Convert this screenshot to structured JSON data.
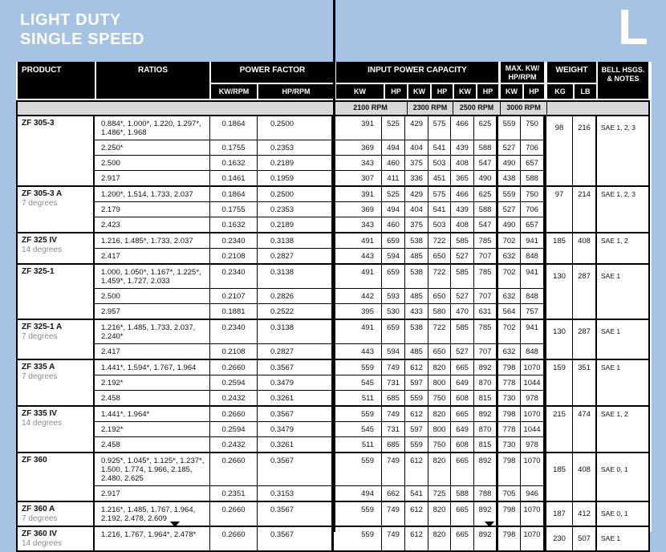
{
  "page": {
    "title_line1": "LIGHT DUTY",
    "title_line2": "SINGLE SPEED",
    "section_letter": "L",
    "colors": {
      "header_blue": "#a6c3e3",
      "band_gray": "#d8d8d8",
      "table_black": "#000000"
    }
  },
  "table": {
    "headers": {
      "product": "PRODUCT",
      "ratios": "RATIOS",
      "power_factor": "POWER FACTOR",
      "kw_rpm": "KW/RPM",
      "hp_rpm": "HP/RPM",
      "input_power": "INPUT POWER CAPACITY",
      "max_line1": "MAX. KW/",
      "max_line2": "HP/RPM",
      "weight": "WEIGHT",
      "bell_line1": "BELL HSGS.",
      "bell_line2": "& NOTES",
      "kw": "KW",
      "hp": "HP",
      "kg": "KG",
      "lb": "LB",
      "rpm_bands": [
        "2100 RPM",
        "2300 RPM",
        "2500 RPM",
        "3000 RPM"
      ]
    },
    "groups": [
      {
        "product": "ZF 305-3",
        "degrees": "",
        "kg": 98,
        "lb": 216,
        "notes": "SAE 1, 2, 3",
        "rows": [
          {
            "ratios": "0.884*, 1.000*, 1.220, 1.297*, 1.486*, 1.968",
            "kw_rpm": "0.1864",
            "hp_rpm": "0.2500",
            "values": [
              391,
              525,
              429,
              575,
              466,
              625,
              559,
              750
            ]
          },
          {
            "ratios": "2.250*",
            "kw_rpm": "0.1755",
            "hp_rpm": "0.2353",
            "values": [
              369,
              494,
              404,
              541,
              439,
              588,
              527,
              706
            ]
          },
          {
            "ratios": "2.500",
            "kw_rpm": "0.1632",
            "hp_rpm": "0.2189",
            "values": [
              343,
              460,
              375,
              503,
              408,
              547,
              490,
              657
            ]
          },
          {
            "ratios": "2.917",
            "kw_rpm": "0.1461",
            "hp_rpm": "0.1959",
            "values": [
              307,
              411,
              336,
              451,
              365,
              490,
              438,
              588
            ]
          }
        ]
      },
      {
        "product": "ZF 305-3 A",
        "degrees": "7 degrees",
        "kg": 97,
        "lb": 214,
        "notes": "SAE 1, 2, 3",
        "rows": [
          {
            "ratios": "1.200*, 1.514, 1.733, 2.037",
            "kw_rpm": "0.1864",
            "hp_rpm": "0.2500",
            "values": [
              391,
              525,
              429,
              575,
              466,
              625,
              559,
              750
            ]
          },
          {
            "ratios": "2.179",
            "kw_rpm": "0.1755",
            "hp_rpm": "0.2353",
            "values": [
              369,
              494,
              404,
              541,
              439,
              588,
              527,
              706
            ]
          },
          {
            "ratios": "2.423",
            "kw_rpm": "0.1632",
            "hp_rpm": "0.2189",
            "values": [
              343,
              460,
              375,
              503,
              408,
              547,
              490,
              657
            ]
          }
        ]
      },
      {
        "product": "ZF 325 IV",
        "degrees": "14 degrees",
        "kg": 185,
        "lb": 408,
        "notes": "SAE 1, 2",
        "rows": [
          {
            "ratios": "1.216, 1.485*, 1.733, 2.037",
            "kw_rpm": "0.2340",
            "hp_rpm": "0.3138",
            "values": [
              491,
              659,
              538,
              722,
              585,
              785,
              702,
              941
            ]
          },
          {
            "ratios": "2.417",
            "kw_rpm": "0.2108",
            "hp_rpm": "0.2827",
            "values": [
              443,
              594,
              485,
              650,
              527,
              707,
              632,
              848
            ]
          }
        ]
      },
      {
        "product": "ZF 325-1",
        "degrees": "",
        "kg": 130,
        "lb": 287,
        "notes": "SAE 1",
        "rows": [
          {
            "ratios": "1.000, 1.050*, 1.167*, 1.225*, 1.459*, 1.727, 2.033",
            "kw_rpm": "0.2340",
            "hp_rpm": "0.3138",
            "values": [
              491,
              659,
              538,
              722,
              585,
              785,
              702,
              941
            ]
          },
          {
            "ratios": "2.500",
            "kw_rpm": "0.2107",
            "hp_rpm": "0.2826",
            "values": [
              442,
              593,
              485,
              650,
              527,
              707,
              632,
              848
            ]
          },
          {
            "ratios": "2.957",
            "kw_rpm": "0.1881",
            "hp_rpm": "0.2522",
            "values": [
              395,
              530,
              433,
              580,
              470,
              631,
              564,
              757
            ]
          }
        ]
      },
      {
        "product": "ZF 325-1 A",
        "degrees": "7 degrees",
        "kg": 130,
        "lb": 287,
        "notes": "SAE 1",
        "rows": [
          {
            "ratios": "1.216*, 1.485, 1.733, 2.037, 2.240*",
            "kw_rpm": "0.2340",
            "hp_rpm": "0.3138",
            "values": [
              491,
              659,
              538,
              722,
              585,
              785,
              702,
              941
            ]
          },
          {
            "ratios": "2.417",
            "kw_rpm": "0.2108",
            "hp_rpm": "0.2827",
            "values": [
              443,
              594,
              485,
              650,
              527,
              707,
              632,
              848
            ]
          }
        ]
      },
      {
        "product": "ZF 335 A",
        "degrees": "7 degrees",
        "kg": 159,
        "lb": 351,
        "notes": "SAE 1",
        "rows": [
          {
            "ratios": "1.441*, 1.594*, 1.767, 1.964",
            "kw_rpm": "0.2660",
            "hp_rpm": "0.3567",
            "values": [
              559,
              749,
              612,
              820,
              665,
              892,
              798,
              1070
            ]
          },
          {
            "ratios": "2.192*",
            "kw_rpm": "0.2594",
            "hp_rpm": "0.3479",
            "values": [
              545,
              731,
              597,
              800,
              649,
              870,
              778,
              1044
            ]
          },
          {
            "ratios": "2.458",
            "kw_rpm": "0.2432",
            "hp_rpm": "0.3261",
            "values": [
              511,
              685,
              559,
              750,
              608,
              815,
              730,
              978
            ]
          }
        ]
      },
      {
        "product": "ZF 335 IV",
        "degrees": "14 degrees",
        "kg": 215,
        "lb": 474,
        "notes": "SAE 1, 2",
        "rows": [
          {
            "ratios": "1.441*, 1.964*",
            "kw_rpm": "0.2660",
            "hp_rpm": "0.3567",
            "values": [
              559,
              749,
              612,
              820,
              665,
              892,
              798,
              1070
            ]
          },
          {
            "ratios": "2.192*",
            "kw_rpm": "0.2594",
            "hp_rpm": "0.3479",
            "values": [
              545,
              731,
              597,
              800,
              649,
              870,
              778,
              1044
            ]
          },
          {
            "ratios": "2.458",
            "kw_rpm": "0.2432",
            "hp_rpm": "0.3261",
            "values": [
              511,
              685,
              559,
              750,
              608,
              815,
              730,
              978
            ]
          }
        ]
      },
      {
        "product": "ZF 360",
        "degrees": "",
        "kg": 185,
        "lb": 408,
        "notes": "SAE 0, 1",
        "rows": [
          {
            "ratios": "0.925*, 1.045*, 1.125*, 1.237*, 1.500, 1.774, 1.966, 2.185, 2.480, 2.625",
            "kw_rpm": "0.2660",
            "hp_rpm": "0.3567",
            "values": [
              559,
              749,
              612,
              820,
              665,
              892,
              798,
              1070
            ]
          },
          {
            "ratios": "2.917",
            "kw_rpm": "0.2351",
            "hp_rpm": "0.3153",
            "values": [
              494,
              662,
              541,
              725,
              588,
              788,
              705,
              946
            ]
          }
        ]
      },
      {
        "product": "ZF 360 A",
        "degrees": "7 degrees",
        "kg": 187,
        "lb": 412,
        "notes": "SAE 0, 1",
        "rows": [
          {
            "ratios": "1.216*, 1.485, 1.767, 1.964, 2.192, 2.478, 2.609",
            "kw_rpm": "0.2660",
            "hp_rpm": "0.3567",
            "values": [
              559,
              749,
              612,
              820,
              665,
              892,
              798,
              1070
            ]
          }
        ]
      },
      {
        "product": "ZF 360 IV",
        "degrees": "14 degrees",
        "kg": 230,
        "lb": 507,
        "notes": "SAE 1",
        "rows": [
          {
            "ratios": "1.216, 1.767, 1.964*, 2.478*",
            "kw_rpm": "0.2660",
            "hp_rpm": "0.3567",
            "values": [
              559,
              749,
              612,
              820,
              665,
              892,
              798,
              1070
            ]
          }
        ]
      }
    ]
  }
}
